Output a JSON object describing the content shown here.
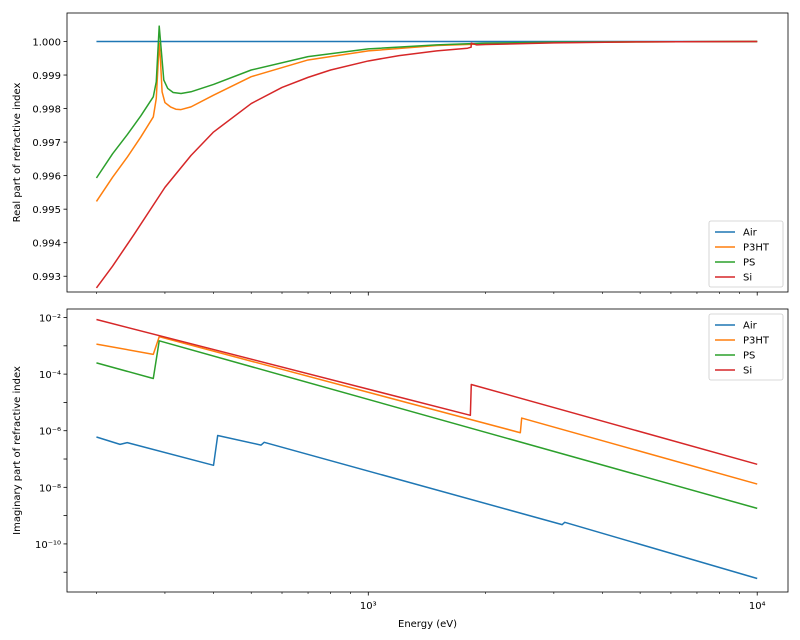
{
  "chart_data": [
    {
      "type": "line",
      "title": "",
      "xlabel": "",
      "ylabel": "Real part of refractive index",
      "xscale": "log",
      "yscale": "linear",
      "xlim": [
        168,
        12000
      ],
      "ylim": [
        0.99253,
        1.00085
      ],
      "yticks": [
        0.993,
        0.994,
        0.995,
        0.996,
        0.997,
        0.998,
        0.999,
        1.0
      ],
      "ytick_labels": [
        "0.993",
        "0.994",
        "0.995",
        "0.996",
        "0.997",
        "0.998",
        "0.999",
        "1.000"
      ],
      "xtick_labels": [],
      "legend": {
        "location": "lower right",
        "entries": [
          "Air",
          "P3HT",
          "PS",
          "Si"
        ]
      },
      "series": [
        {
          "name": "Air",
          "color": "#1f77b4",
          "x": [
            200,
            10000
          ],
          "y": [
            1.0,
            1.0
          ]
        },
        {
          "name": "P3HT",
          "color": "#ff7f0e",
          "x": [
            200,
            220,
            240,
            260,
            280,
            285,
            290,
            292,
            295,
            300,
            310,
            320,
            330,
            350,
            400,
            500,
            700,
            1000,
            1500,
            2000,
            3000,
            5000,
            10000
          ],
          "y": [
            0.99523,
            0.99595,
            0.99655,
            0.99715,
            0.99775,
            0.9983,
            0.99995,
            0.9995,
            0.9985,
            0.99818,
            0.99805,
            0.99798,
            0.99797,
            0.99805,
            0.9984,
            0.99895,
            0.99945,
            0.99972,
            0.99988,
            0.99993,
            0.99997,
            0.99999,
            1.0
          ]
        },
        {
          "name": "PS",
          "color": "#2ca02c",
          "x": [
            200,
            220,
            240,
            260,
            280,
            285,
            290,
            293,
            298,
            305,
            315,
            330,
            350,
            400,
            500,
            700,
            1000,
            1500,
            2000,
            3000,
            5000,
            10000
          ],
          "y": [
            0.99593,
            0.99665,
            0.99722,
            0.99778,
            0.99835,
            0.9988,
            1.00046,
            0.99985,
            0.99885,
            0.9986,
            0.99848,
            0.99845,
            0.9985,
            0.99872,
            0.99915,
            0.99955,
            0.99978,
            0.9999,
            0.99995,
            0.99998,
            0.99999,
            1.0
          ]
        },
        {
          "name": "Si",
          "color": "#d62728",
          "x": [
            200,
            220,
            250,
            300,
            350,
            400,
            500,
            600,
            700,
            800,
            1000,
            1200,
            1500,
            1800,
            1838,
            1840,
            1900,
            2000,
            3000,
            5000,
            10000
          ],
          "y": [
            0.99265,
            0.9933,
            0.99425,
            0.99565,
            0.9966,
            0.9973,
            0.99815,
            0.99863,
            0.99893,
            0.99915,
            0.99942,
            0.99958,
            0.99972,
            0.9998,
            0.99983,
            0.99995,
            0.9999,
            0.99991,
            0.99996,
            0.99999,
            1.0
          ]
        }
      ]
    },
    {
      "type": "line",
      "title": "",
      "xlabel": "Energy (eV)",
      "ylabel": "Imaginary part of refractive index",
      "xscale": "log",
      "yscale": "log",
      "xlim": [
        168,
        12000
      ],
      "ylim": [
        2e-12,
        0.02
      ],
      "ytick_labels": [
        "10⁻¹⁰",
        "10⁻⁸",
        "10⁻⁶",
        "10⁻⁴",
        "10⁻²"
      ],
      "xtick_labels": [
        "10³",
        "10⁴"
      ],
      "legend": {
        "location": "upper right",
        "entries": [
          "Air",
          "P3HT",
          "PS",
          "Si"
        ]
      },
      "series": [
        {
          "name": "Air",
          "color": "#1f77b4",
          "x": [
            200,
            230,
            240,
            400,
            410,
            530,
            540,
            3150,
            3200,
            10000
          ],
          "y": [
            6e-07,
            3.3e-07,
            3.8e-07,
            6e-08,
            6.8e-07,
            3.1e-07,
            3.9e-07,
            4.8e-10,
            5.8e-10,
            6e-12
          ]
        },
        {
          "name": "P3HT",
          "color": "#ff7f0e",
          "x": [
            200,
            280,
            290,
            2460,
            2480,
            10000
          ],
          "y": [
            0.00115,
            0.0005,
            0.0021,
            8.5e-07,
            2.8e-06,
            1.3e-08
          ]
        },
        {
          "name": "PS",
          "color": "#2ca02c",
          "x": [
            200,
            280,
            290,
            10000
          ],
          "y": [
            0.00025,
            7e-05,
            0.0015,
            1.8e-09
          ]
        },
        {
          "name": "Si",
          "color": "#d62728",
          "x": [
            200,
            1830,
            1840,
            10000
          ],
          "y": [
            0.0085,
            3.5e-06,
            4.3e-05,
            6.5e-08
          ]
        }
      ]
    }
  ]
}
